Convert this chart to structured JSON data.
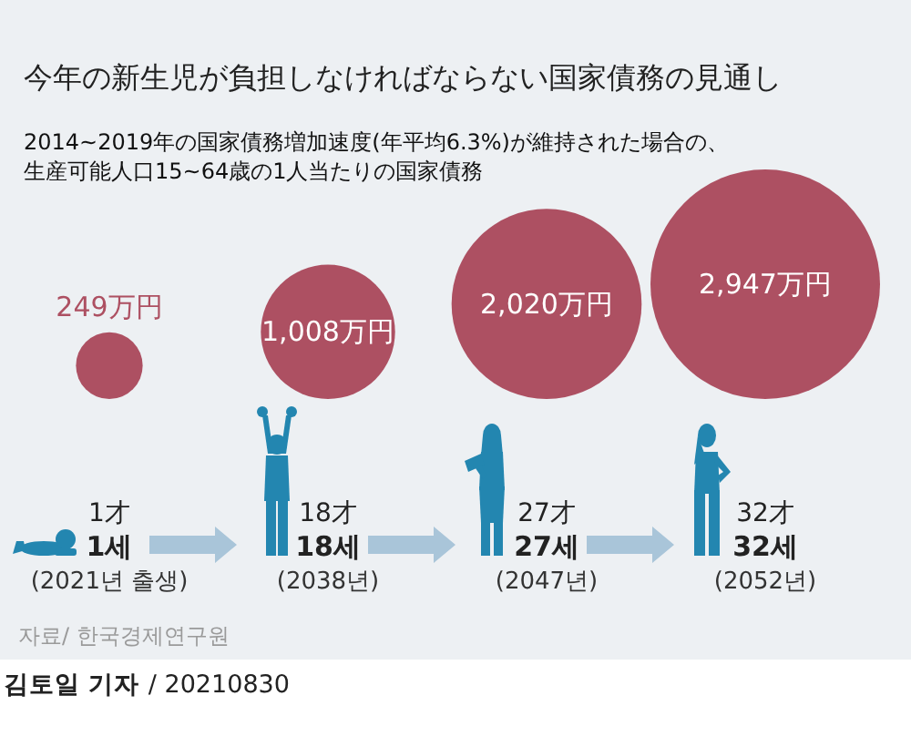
{
  "chart_data": {
    "type": "other",
    "title": "今年の新生児が負担しなければならない国家債務の見通し",
    "subtitle": "2014~2019年の国家債務増加速度(年平均6.3%)が維持された場合の、生産可能人口15~64歳の1人当たりの国家債務",
    "categories": [
      "1세",
      "18세",
      "27세",
      "32세"
    ],
    "values": [
      249,
      1008,
      2020,
      2947
    ],
    "value_labels": [
      "249万円",
      "1,008万円",
      "2,020万円",
      "2,947万円"
    ],
    "color": "#ad5062",
    "annotations": [
      {
        "text": "1才",
        "x": "1세"
      },
      {
        "text": "(2021년 출생)",
        "x": "1세"
      },
      {
        "text": "18才",
        "x": "18세"
      },
      {
        "text": "(2038년)",
        "x": "18세"
      },
      {
        "text": "27才",
        "x": "27세"
      },
      {
        "text": "(2047년)",
        "x": "27세"
      },
      {
        "text": "32才",
        "x": "32세"
      },
      {
        "text": "(2052년)",
        "x": "32세"
      },
      "자료/ 한국경제연구원",
      "김토일 기자 / 20210830"
    ]
  }
}
